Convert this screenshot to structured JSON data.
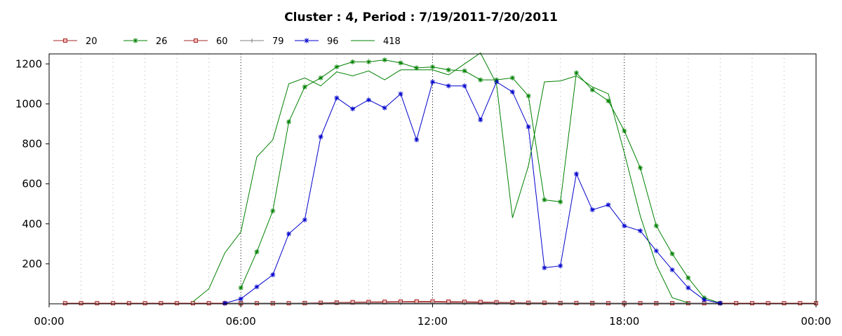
{
  "chart_data": {
    "type": "line",
    "title": "Cluster : 4, Period : 7/19/2011-7/20/2011",
    "xlabel": "",
    "ylabel": "",
    "xlim": [
      0,
      24
    ],
    "ylim": [
      0,
      1250
    ],
    "x_ticks": [
      {
        "value": 0,
        "label": "00:00"
      },
      {
        "value": 6,
        "label": "06:00"
      },
      {
        "value": 12,
        "label": "12:00"
      },
      {
        "value": 18,
        "label": "18:00"
      },
      {
        "value": 24,
        "label": "00:00"
      }
    ],
    "y_ticks": [
      {
        "value": 200,
        "label": "200"
      },
      {
        "value": 400,
        "label": "400"
      },
      {
        "value": 600,
        "label": "600"
      },
      {
        "value": 800,
        "label": "800"
      },
      {
        "value": 1000,
        "label": "1000"
      },
      {
        "value": 1200,
        "label": "1200"
      }
    ],
    "grid": true,
    "legend_position": "top-left",
    "series": [
      {
        "name": "20",
        "color": "#a52a2a",
        "marker": "square",
        "points": [
          [
            0.5,
            3
          ],
          [
            1,
            3
          ],
          [
            1.5,
            3
          ],
          [
            2,
            3
          ],
          [
            2.5,
            3
          ],
          [
            3,
            3
          ],
          [
            3.5,
            3
          ],
          [
            4,
            3
          ],
          [
            4.5,
            3
          ],
          [
            5,
            3
          ],
          [
            5.5,
            3
          ],
          [
            6,
            3
          ],
          [
            6.5,
            3
          ],
          [
            7,
            3
          ],
          [
            7.5,
            3
          ],
          [
            8,
            4
          ],
          [
            8.5,
            5
          ],
          [
            9,
            6
          ],
          [
            9.5,
            7
          ],
          [
            10,
            8
          ],
          [
            10.5,
            8
          ],
          [
            11,
            9
          ],
          [
            11.5,
            9
          ],
          [
            12,
            9
          ],
          [
            12.5,
            8
          ],
          [
            13,
            8
          ],
          [
            13.5,
            7
          ],
          [
            14,
            7
          ],
          [
            14.5,
            6
          ],
          [
            15,
            5
          ],
          [
            15.5,
            5
          ],
          [
            16,
            4
          ],
          [
            16.5,
            4
          ],
          [
            17,
            4
          ],
          [
            17.5,
            3
          ],
          [
            18,
            3
          ],
          [
            18.5,
            3
          ],
          [
            19,
            3
          ],
          [
            19.5,
            3
          ],
          [
            20,
            3
          ],
          [
            20.5,
            3
          ],
          [
            21,
            3
          ],
          [
            21.5,
            3
          ],
          [
            22,
            3
          ],
          [
            22.5,
            3
          ],
          [
            23,
            3
          ],
          [
            23.5,
            3
          ],
          [
            24,
            3
          ]
        ]
      },
      {
        "name": "26",
        "color": "#008000",
        "marker": "star",
        "points": [
          [
            6,
            80
          ],
          [
            6.5,
            260
          ],
          [
            7,
            465
          ],
          [
            7.5,
            910
          ],
          [
            8,
            1085
          ],
          [
            8.5,
            1130
          ],
          [
            9,
            1185
          ],
          [
            9.5,
            1210
          ],
          [
            10,
            1210
          ],
          [
            10.5,
            1220
          ],
          [
            11,
            1205
          ],
          [
            11.5,
            1180
          ],
          [
            12,
            1185
          ],
          [
            12.5,
            1170
          ],
          [
            13,
            1165
          ],
          [
            13.5,
            1120
          ],
          [
            14,
            1120
          ],
          [
            14.5,
            1130
          ],
          [
            15,
            1040
          ],
          [
            15.5,
            520
          ],
          [
            16,
            510
          ],
          [
            16.5,
            1155
          ],
          [
            17,
            1070
          ],
          [
            17.5,
            1015
          ],
          [
            18,
            865
          ],
          [
            18.5,
            680
          ],
          [
            19,
            390
          ],
          [
            19.5,
            250
          ],
          [
            20,
            130
          ],
          [
            20.5,
            30
          ],
          [
            21,
            3
          ]
        ]
      },
      {
        "name": "60",
        "color": "#a52a2a",
        "marker": "square",
        "points": [
          [
            6,
            2
          ],
          [
            7,
            2
          ],
          [
            8,
            3
          ],
          [
            9,
            6
          ],
          [
            9.5,
            8
          ],
          [
            10,
            9
          ],
          [
            10.5,
            10
          ],
          [
            11,
            11
          ],
          [
            11.5,
            12
          ],
          [
            12,
            12
          ],
          [
            12.5,
            11
          ],
          [
            13,
            10
          ],
          [
            13.5,
            9
          ],
          [
            14,
            8
          ],
          [
            14.5,
            6
          ],
          [
            15,
            5
          ],
          [
            16,
            3
          ],
          [
            17,
            2
          ],
          [
            18,
            2
          ],
          [
            19,
            2
          ]
        ]
      },
      {
        "name": "79",
        "color": "#808080",
        "marker": "plus",
        "points": [
          [
            5.5,
            3
          ],
          [
            6,
            3
          ],
          [
            7,
            3
          ],
          [
            8,
            3
          ],
          [
            9,
            3
          ],
          [
            10,
            3
          ],
          [
            11,
            3
          ],
          [
            12,
            3
          ],
          [
            13,
            3
          ],
          [
            14,
            3
          ],
          [
            15,
            3
          ],
          [
            16,
            3
          ],
          [
            17,
            3
          ],
          [
            18,
            3
          ],
          [
            19,
            3
          ],
          [
            20,
            3
          ],
          [
            21,
            3
          ]
        ]
      },
      {
        "name": "96",
        "color": "#0000cc",
        "marker": "star",
        "points": [
          [
            5.5,
            3
          ],
          [
            6,
            25
          ],
          [
            6.5,
            85
          ],
          [
            7,
            145
          ],
          [
            7.5,
            350
          ],
          [
            8,
            420
          ],
          [
            8.5,
            835
          ],
          [
            9,
            1030
          ],
          [
            9.5,
            975
          ],
          [
            10,
            1020
          ],
          [
            10.5,
            980
          ],
          [
            11,
            1050
          ],
          [
            11.5,
            820
          ],
          [
            12,
            1110
          ],
          [
            12.5,
            1090
          ],
          [
            13,
            1090
          ],
          [
            13.5,
            920
          ],
          [
            14,
            1110
          ],
          [
            14.5,
            1060
          ],
          [
            15,
            885
          ],
          [
            15.5,
            180
          ],
          [
            16,
            190
          ],
          [
            16.5,
            650
          ],
          [
            17,
            470
          ],
          [
            17.5,
            495
          ],
          [
            18,
            390
          ],
          [
            18.5,
            365
          ],
          [
            19,
            265
          ],
          [
            19.5,
            170
          ],
          [
            20,
            80
          ],
          [
            20.5,
            20
          ],
          [
            21,
            3
          ]
        ]
      },
      {
        "name": "418",
        "color": "#008000",
        "marker": "none",
        "points": [
          [
            4.5,
            10
          ],
          [
            5,
            75
          ],
          [
            5.5,
            255
          ],
          [
            6,
            360
          ],
          [
            6.5,
            735
          ],
          [
            7,
            820
          ],
          [
            7.5,
            1100
          ],
          [
            8,
            1130
          ],
          [
            8.5,
            1090
          ],
          [
            9,
            1160
          ],
          [
            9.5,
            1140
          ],
          [
            10,
            1165
          ],
          [
            10.5,
            1120
          ],
          [
            11,
            1170
          ],
          [
            11.5,
            1170
          ],
          [
            12,
            1170
          ],
          [
            12.5,
            1145
          ],
          [
            13,
            1200
          ],
          [
            13.5,
            1255
          ],
          [
            14,
            1100
          ],
          [
            14.5,
            430
          ],
          [
            15,
            690
          ],
          [
            15.5,
            1110
          ],
          [
            16,
            1115
          ],
          [
            16.5,
            1140
          ],
          [
            17,
            1085
          ],
          [
            17.5,
            1050
          ],
          [
            18,
            755
          ],
          [
            18.5,
            440
          ],
          [
            19,
            195
          ],
          [
            19.5,
            30
          ],
          [
            20,
            5
          ]
        ]
      }
    ]
  }
}
